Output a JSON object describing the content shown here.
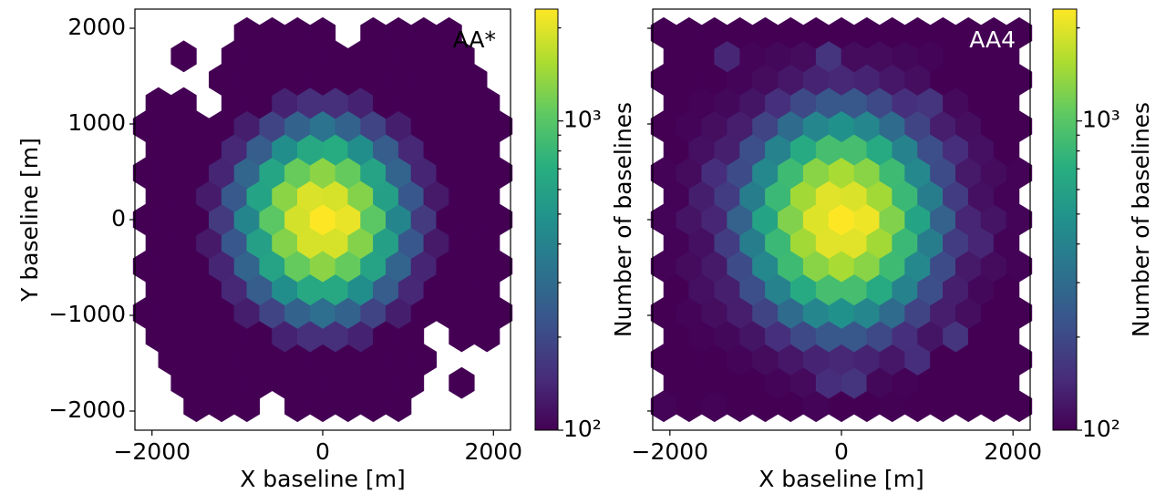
{
  "chart_data": [
    {
      "type": "hexbin",
      "annotation": "AA*",
      "annotation_color": "#000000",
      "xlabel": "X baseline [m]",
      "ylabel": "Y baseline [m]",
      "colorbar_label": "Number of baselines",
      "xlim": [
        -2200,
        2200
      ],
      "ylim": [
        -2200,
        2200
      ],
      "xticks": [
        {
          "value": -2000,
          "label": "−2000"
        },
        0,
        2000
      ],
      "yticks": [
        {
          "value": -2000,
          "label": "−2000"
        },
        {
          "value": -1000,
          "label": "−1000"
        },
        0,
        1000,
        2000
      ],
      "ytick_labels": true,
      "cmap": "viridis",
      "log_color": true,
      "clim": [
        100,
        2300
      ],
      "cticks": [
        {
          "value": 100,
          "label": "10²"
        },
        {
          "value": 1000,
          "label": "10³"
        }
      ],
      "cticks_minor": [
        200,
        300,
        400,
        500,
        600,
        700,
        800,
        900,
        2000
      ],
      "gridsize": 14,
      "extent": [
        -2072,
        2072,
        -1950,
        1950
      ],
      "counts": [
        [
          null,
          null,
          100,
          100,
          100,
          null,
          100,
          100,
          100,
          100,
          100,
          null,
          null,
          null,
          null
        ],
        [
          null,
          100,
          100,
          100,
          100,
          100,
          100,
          100,
          100,
          100,
          100,
          null,
          100,
          null
        ],
        [
          null,
          100,
          100,
          100,
          100,
          100,
          100,
          100,
          100,
          100,
          100,
          100,
          null,
          null,
          null
        ],
        [
          100,
          100,
          100,
          100,
          100,
          135,
          153,
          153,
          135,
          100,
          100,
          null,
          100,
          100
        ],
        [
          100,
          100,
          100,
          100,
          130,
          188,
          269,
          309,
          269,
          188,
          130,
          100,
          100,
          100,
          100
        ],
        [
          100,
          100,
          100,
          142,
          252,
          463,
          657,
          657,
          463,
          252,
          142,
          100,
          100,
          100
        ],
        [
          100,
          100,
          100,
          138,
          274,
          615,
          1083,
          1321,
          1083,
          615,
          274,
          138,
          100,
          100,
          100
        ],
        [
          100,
          100,
          124,
          234,
          591,
          1269,
          1900,
          1900,
          1269,
          591,
          234,
          124,
          100,
          100
        ],
        [
          100,
          100,
          100,
          169,
          414,
          1026,
          1873,
          2300,
          2100,
          1026,
          414,
          169,
          100,
          100,
          100
        ],
        [
          100,
          100,
          126,
          240,
          610,
          1310,
          1950,
          1900,
          1269,
          591,
          234,
          124,
          100,
          100
        ],
        [
          100,
          100,
          100,
          138,
          280,
          630,
          1100,
          1321,
          1083,
          615,
          274,
          138,
          100,
          100,
          100
        ],
        [
          100,
          100,
          100,
          142,
          252,
          463,
          657,
          680,
          463,
          252,
          142,
          100,
          100,
          100
        ],
        [
          100,
          100,
          100,
          100,
          130,
          188,
          269,
          330,
          269,
          188,
          130,
          100,
          100,
          100,
          100
        ],
        [
          100,
          100,
          null,
          100,
          100,
          135,
          153,
          153,
          135,
          100,
          100,
          100,
          100,
          100
        ],
        [
          null,
          null,
          null,
          100,
          100,
          100,
          100,
          100,
          100,
          100,
          100,
          100,
          100,
          100,
          null
        ],
        [
          null,
          100,
          null,
          100,
          100,
          100,
          100,
          100,
          100,
          100,
          100,
          100,
          100,
          null
        ],
        [
          null,
          null,
          null,
          null,
          100,
          100,
          100,
          100,
          null,
          100,
          100,
          100,
          100,
          null,
          null
        ]
      ]
    },
    {
      "type": "hexbin",
      "annotation": "AA4",
      "annotation_color": "#ffffff",
      "xlabel": "X baseline [m]",
      "colorbar_label": "Number of baselines",
      "xlim": [
        -2200,
        2200
      ],
      "ylim": [
        -2200,
        2200
      ],
      "xticks": [
        {
          "value": -2000,
          "label": "−2000"
        },
        0,
        2000
      ],
      "yticks": [
        -2000,
        -1000,
        0,
        1000,
        2000
      ],
      "ytick_labels": false,
      "cmap": "viridis",
      "log_color": true,
      "clim": [
        100,
        2300
      ],
      "cticks": [
        {
          "value": 100,
          "label": "10²"
        },
        {
          "value": 1000,
          "label": "10³"
        }
      ],
      "cticks_minor": [
        200,
        300,
        400,
        500,
        600,
        700,
        800,
        900,
        2000
      ],
      "gridsize": 14,
      "extent": [
        -2072,
        2072,
        -1950,
        1950
      ],
      "counts": [
        [
          104,
          100,
          102,
          100,
          100,
          100,
          103,
          100,
          100,
          101,
          100,
          100,
          100,
          100,
          100
        ],
        [
          100,
          100,
          100,
          100,
          104,
          108,
          150,
          160,
          106,
          102,
          100,
          100,
          100,
          100
        ],
        [
          100,
          100,
          100,
          104,
          110,
          122,
          136,
          142,
          136,
          122,
          150,
          100,
          100,
          100,
          100
        ],
        [
          100,
          102,
          106,
          119,
          151,
          199,
          235,
          235,
          199,
          151,
          119,
          160,
          100,
          100
        ],
        [
          100,
          104,
          112,
          129,
          188,
          296,
          423,
          479,
          423,
          296,
          188,
          129,
          112,
          100,
          100
        ],
        [
          100,
          114,
          131,
          212,
          397,
          670,
          885,
          885,
          670,
          397,
          212,
          131,
          106,
          100
        ],
        [
          102,
          110,
          124,
          206,
          430,
          841,
          1303,
          1517,
          1303,
          841,
          430,
          206,
          124,
          110,
          102
        ],
        [
          102,
          114,
          174,
          371,
          817,
          1471,
          1993,
          1993,
          1471,
          817,
          371,
          174,
          140,
          102
        ],
        [
          103,
          118,
          140,
          265,
          612,
          1251,
          1970,
          2300,
          2150,
          1251,
          612,
          265,
          140,
          118,
          103
        ],
        [
          102,
          130,
          174,
          371,
          817,
          1471,
          1993,
          1950,
          1471,
          817,
          371,
          174,
          114,
          102
        ],
        [
          102,
          110,
          150,
          206,
          430,
          841,
          1303,
          1517,
          1303,
          841,
          430,
          206,
          124,
          110,
          102
        ],
        [
          100,
          114,
          131,
          212,
          397,
          670,
          885,
          885,
          670,
          397,
          212,
          150,
          114,
          100
        ],
        [
          100,
          104,
          112,
          129,
          188,
          296,
          423,
          479,
          423,
          296,
          188,
          129,
          112,
          100,
          100
        ],
        [
          100,
          102,
          106,
          119,
          151,
          199,
          235,
          235,
          199,
          151,
          160,
          108,
          100,
          100
        ],
        [
          100,
          100,
          100,
          104,
          110,
          122,
          136,
          142,
          136,
          122,
          112,
          100,
          100,
          100,
          100
        ],
        [
          100,
          100,
          140,
          104,
          106,
          110,
          160,
          110,
          110,
          106,
          104,
          100,
          100,
          100
        ],
        [
          100,
          100,
          100,
          100,
          100,
          100,
          100,
          100,
          100,
          100,
          100,
          100,
          100,
          100,
          100
        ]
      ]
    }
  ]
}
